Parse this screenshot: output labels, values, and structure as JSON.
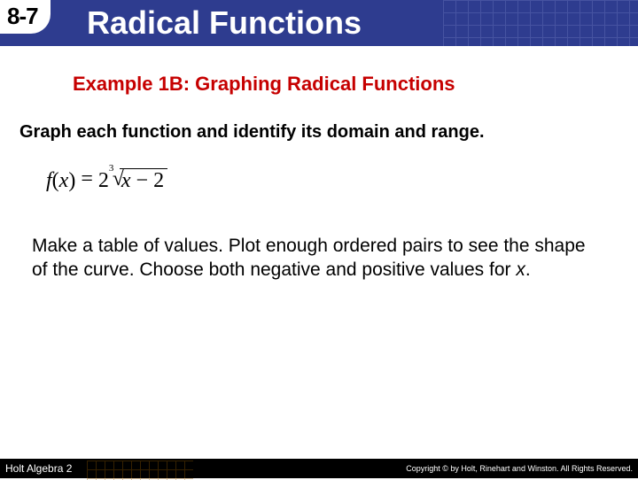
{
  "header": {
    "lesson_number": "8-7",
    "title": "Radical Functions",
    "bg_color": "#2e3c8f",
    "grid_color": "#5a67b0"
  },
  "example": {
    "heading": "Example 1B: Graphing Radical Functions",
    "heading_color": "#c60000"
  },
  "instruction": "Graph each function and identify its domain and range.",
  "formula": {
    "lhs_f": "f",
    "lhs_open": "(",
    "lhs_var": "x",
    "lhs_close": ")",
    "eq": "=",
    "coef": "2",
    "index": "3",
    "radicand_var": "x",
    "radicand_op": "−",
    "radicand_const": "2"
  },
  "explain": {
    "line": "Make a table of values. Plot enough ordered pairs to see the shape of the curve. Choose both negative and positive values for ",
    "var": "x",
    "end": "."
  },
  "footer": {
    "book": "Holt Algebra 2",
    "copyright": "Copyright © by Holt, Rinehart and Winston. All Rights Reserved."
  }
}
